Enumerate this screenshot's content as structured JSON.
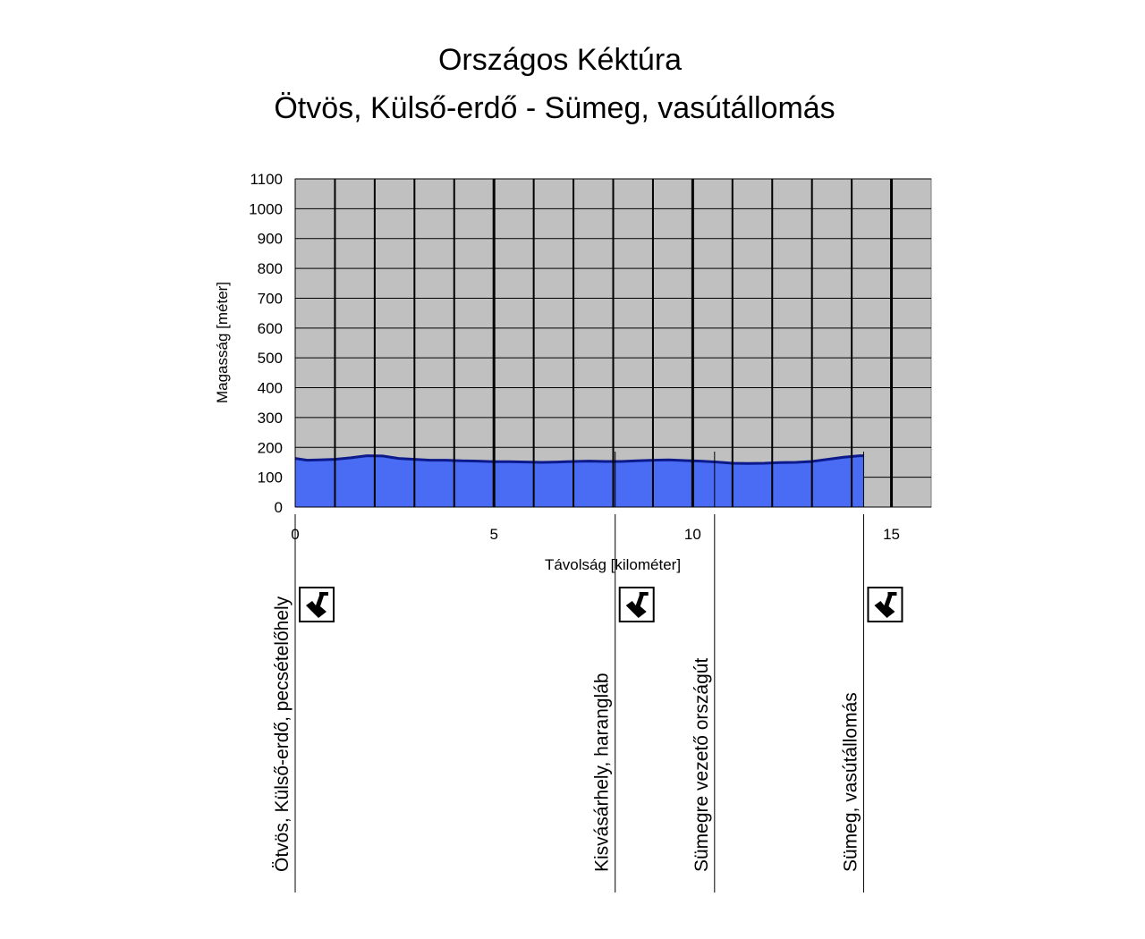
{
  "chart_data": {
    "type": "area",
    "title": "Országos Kéktúra",
    "subtitle": "Ötvös, Külső-erdő - Sümeg, vasútállomás",
    "xlabel": "Távolság [kilométer]",
    "ylabel": "Magasság [méter]",
    "xlim": [
      0,
      16
    ],
    "ylim": [
      0,
      1100
    ],
    "x_ticks": [
      0,
      5,
      10,
      15
    ],
    "y_ticks": [
      0,
      100,
      200,
      300,
      400,
      500,
      600,
      700,
      800,
      900,
      1000,
      1100
    ],
    "grid": true,
    "fill_color": "#4a6cf4",
    "line_color": "#0c1a8c",
    "plot_background": "#c0c0c0",
    "series": [
      {
        "x": [
          0,
          0.3,
          0.6,
          1.0,
          1.4,
          1.8,
          2.2,
          2.6,
          3.0,
          3.4,
          3.8,
          4.2,
          4.6,
          5.0,
          5.4,
          5.8,
          6.2,
          6.6,
          7.0,
          7.4,
          7.8,
          8.2,
          8.6,
          9.0,
          9.4,
          9.8,
          10.2,
          10.6,
          11.0,
          11.4,
          11.8,
          12.2,
          12.6,
          13.0,
          13.4,
          13.8,
          14.2,
          14.3
        ],
        "y": [
          163,
          157,
          158,
          160,
          165,
          172,
          171,
          163,
          160,
          157,
          157,
          155,
          154,
          152,
          152,
          151,
          150,
          151,
          153,
          154,
          153,
          153,
          155,
          157,
          158,
          156,
          154,
          151,
          147,
          146,
          147,
          149,
          150,
          153,
          160,
          167,
          172,
          172
        ]
      }
    ],
    "waypoints": [
      {
        "km": 0,
        "name": "Ötvös, Külső-erdő, pecsételőhely",
        "stamp": true
      },
      {
        "km": 8.05,
        "name": "Kisvásárhely, harangláb",
        "stamp": true
      },
      {
        "km": 10.55,
        "name": "Sümegre vezető országút",
        "stamp": false
      },
      {
        "km": 14.3,
        "name": "Sümeg, vasútállomás",
        "stamp": true
      }
    ],
    "stamp_icon": "stamp-icon"
  }
}
